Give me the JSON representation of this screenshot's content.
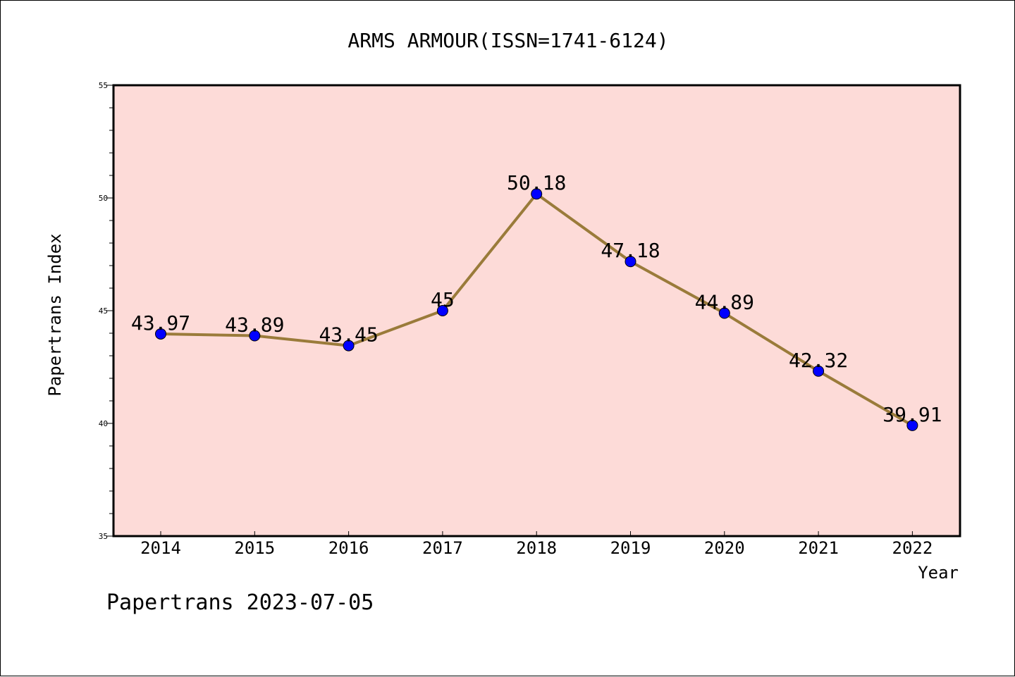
{
  "chart_data": {
    "type": "line",
    "title": "ARMS ARMOUR(ISSN=1741-6124)",
    "xlabel": "Year",
    "ylabel": "Papertrans Index",
    "categories": [
      "2014",
      "2015",
      "2016",
      "2017",
      "2018",
      "2019",
      "2020",
      "2021",
      "2022"
    ],
    "series": [
      {
        "values": [
          43.97,
          43.89,
          43.45,
          45,
          50.18,
          47.18,
          44.89,
          42.32,
          39.91
        ]
      }
    ],
    "data_labels": [
      "43.97",
      "43.89",
      "43.45",
      "45",
      "50.18",
      "47.18",
      "44.89",
      "42.32",
      "39.91"
    ],
    "ylim": [
      35,
      55
    ],
    "yticks": [
      "35",
      "40",
      "45",
      "50",
      "55"
    ],
    "grid": false,
    "colors": {
      "plot_background": "#fddbd8",
      "line": "#9a7b3a",
      "marker": "#0000ff"
    }
  },
  "footer": "Papertrans 2023-07-05"
}
